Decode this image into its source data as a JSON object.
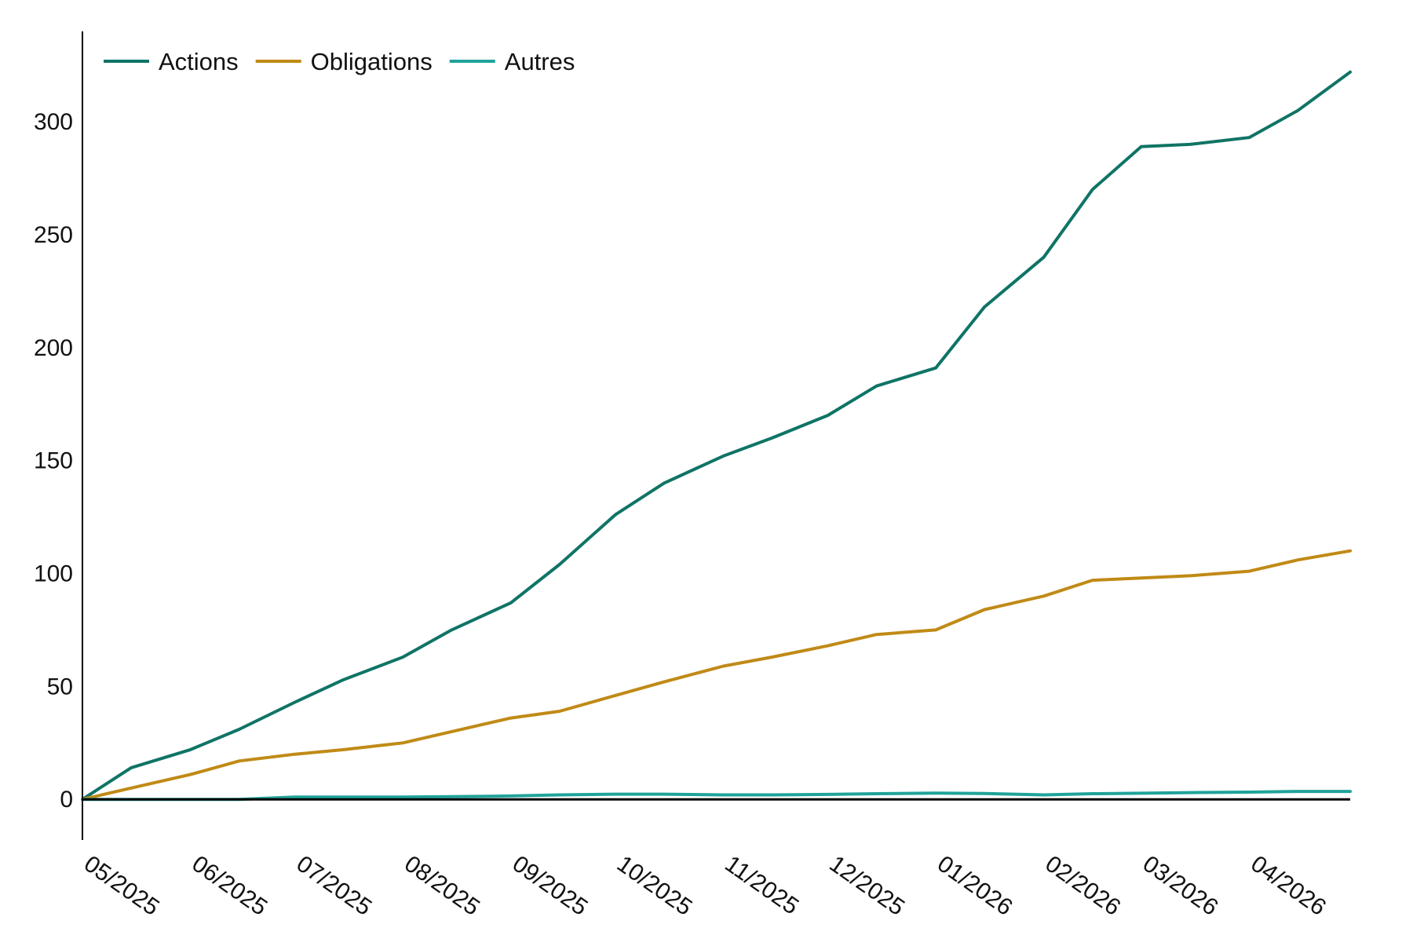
{
  "chart_data": {
    "type": "line",
    "title": "",
    "xlabel": "",
    "ylabel": "",
    "x_tick_labels": [
      "05/2025",
      "06/2025",
      "07/2025",
      "08/2025",
      "09/2025",
      "10/2025",
      "11/2025",
      "12/2025",
      "01/2026",
      "02/2026",
      "03/2026",
      "04/2026"
    ],
    "y_ticks": [
      0,
      50,
      100,
      150,
      200,
      250,
      300
    ],
    "ylim": [
      -18,
      340
    ],
    "xlim": [
      "2025-05-01",
      "2026-04-30"
    ],
    "grid": false,
    "legend": {
      "position": "top-left",
      "entries": [
        "Actions",
        "Obligations",
        "Autres"
      ]
    },
    "x": [
      "2025-05-01",
      "2025-05-15",
      "2025-06-01",
      "2025-06-15",
      "2025-07-01",
      "2025-07-15",
      "2025-08-01",
      "2025-08-15",
      "2025-09-01",
      "2025-09-15",
      "2025-10-01",
      "2025-10-15",
      "2025-11-01",
      "2025-11-15",
      "2025-12-01",
      "2025-12-15",
      "2026-01-01",
      "2026-01-15",
      "2026-02-01",
      "2026-02-15",
      "2026-03-01",
      "2026-03-15",
      "2026-04-01",
      "2026-04-15",
      "2026-04-30"
    ],
    "series": [
      {
        "name": "Actions",
        "color": "#0f7466",
        "values": [
          0,
          14,
          22,
          31,
          43,
          53,
          63,
          75,
          87,
          104,
          126,
          140,
          152,
          160,
          170,
          183,
          191,
          218,
          240,
          270,
          289,
          290,
          293,
          305,
          322
        ]
      },
      {
        "name": "Obligations",
        "color": "#c08a16",
        "values": [
          0,
          5,
          11,
          17,
          20,
          22,
          25,
          30,
          36,
          39,
          46,
          52,
          59,
          63,
          68,
          73,
          75,
          84,
          90,
          97,
          98,
          99,
          101,
          106,
          110
        ]
      },
      {
        "name": "Autres",
        "color": "#20a39a",
        "values": [
          0,
          0,
          0,
          0,
          1,
          1,
          1,
          1.2,
          1.5,
          2,
          2.3,
          2.3,
          2,
          2,
          2.2,
          2.5,
          2.8,
          2.6,
          2,
          2.5,
          2.7,
          3,
          3.2,
          3.5,
          3.5
        ]
      }
    ]
  }
}
